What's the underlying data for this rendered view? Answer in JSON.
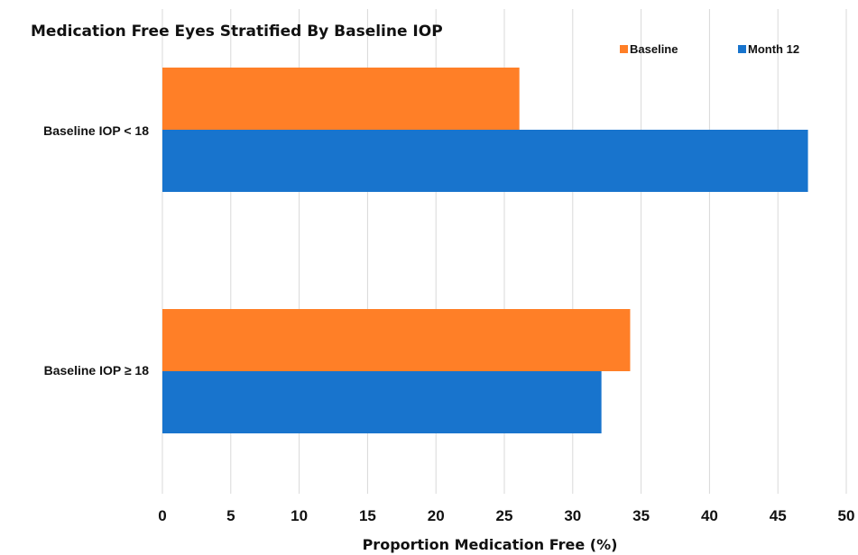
{
  "chart_data": {
    "type": "bar",
    "orientation": "horizontal",
    "title": "Medication Free Eyes Stratified By Baseline IOP",
    "xlabel": "Proportion Medication Free (%)",
    "ylabel": "",
    "categories": [
      "Baseline IOP < 18",
      "Baseline IOP ≥ 18"
    ],
    "series": [
      {
        "name": "Baseline",
        "color": "#FF7F27",
        "values": [
          26.1,
          34.2
        ]
      },
      {
        "name": "Month 12",
        "color": "#1874CD",
        "values": [
          47.2,
          32.1
        ]
      }
    ],
    "xlim": [
      0,
      50
    ],
    "xticks": [
      "0",
      "5",
      "10",
      "15",
      "20",
      "25",
      "30",
      "35",
      "40",
      "45",
      "50"
    ],
    "grid": true,
    "legend_position": "top-right"
  }
}
